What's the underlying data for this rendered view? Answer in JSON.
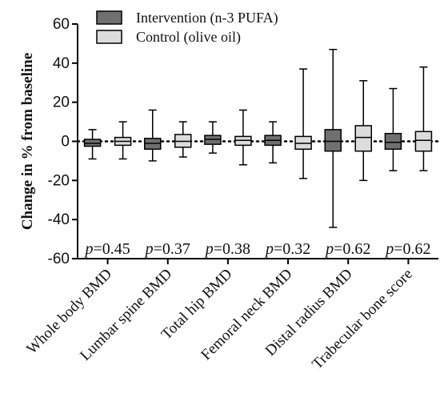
{
  "chart_data": {
    "type": "box",
    "ylabel": "Change in % from baseline",
    "ylim": [
      -60,
      60
    ],
    "yticks": [
      -60,
      -40,
      -20,
      0,
      20,
      40,
      60
    ],
    "reference_line": 0,
    "legend_position": "top-left",
    "categories": [
      "Whole body BMD",
      "Lumbar spine BMD",
      "Total hip BMD",
      "Femoral neck BMD",
      "Distal radius BMD",
      "Trabecular bone score"
    ],
    "series": [
      {
        "name": "Intervention (n-3 PUFA)",
        "color": "#707070",
        "boxes": [
          {
            "min": -9,
            "q1": -2.5,
            "median": -1,
            "q3": 1,
            "max": 6
          },
          {
            "min": -10,
            "q1": -4,
            "median": -1,
            "q3": 1.5,
            "max": 16
          },
          {
            "min": -6,
            "q1": -1.5,
            "median": 1,
            "q3": 3,
            "max": 10
          },
          {
            "min": -11,
            "q1": -2,
            "median": 0.5,
            "q3": 3,
            "max": 10
          },
          {
            "min": -44,
            "q1": -5,
            "median": 0,
            "q3": 6,
            "max": 47
          },
          {
            "min": -15,
            "q1": -4,
            "median": -0.5,
            "q3": 4,
            "max": 27
          }
        ]
      },
      {
        "name": "Control (olive oil)",
        "color": "#dcdcdc",
        "boxes": [
          {
            "min": -9,
            "q1": -2,
            "median": 0,
            "q3": 2,
            "max": 10
          },
          {
            "min": -8,
            "q1": -3,
            "median": 0,
            "q3": 3.5,
            "max": 10
          },
          {
            "min": -12,
            "q1": -2,
            "median": 0.5,
            "q3": 2.5,
            "max": 16
          },
          {
            "min": -19,
            "q1": -4,
            "median": -1,
            "q3": 2.5,
            "max": 37
          },
          {
            "min": -20,
            "q1": -5,
            "median": 2,
            "q3": 8,
            "max": 31
          },
          {
            "min": -15,
            "q1": -5,
            "median": 0.5,
            "q3": 5,
            "max": 38
          }
        ]
      }
    ],
    "annotations": [
      "p=0.45",
      "p=0.37",
      "p=0.38",
      "p=0.32",
      "p=0.62",
      "p=0.62"
    ]
  }
}
